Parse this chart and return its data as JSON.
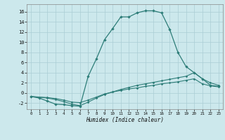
{
  "xlabel": "Humidex (Indice chaleur)",
  "bg_color": "#cce8ec",
  "grid_color": "#aacdd4",
  "line_color": "#2d7d78",
  "xlim": [
    -0.5,
    23.5
  ],
  "ylim": [
    -3.2,
    17.5
  ],
  "xticks": [
    0,
    1,
    2,
    3,
    4,
    5,
    6,
    7,
    8,
    9,
    10,
    11,
    12,
    13,
    14,
    15,
    16,
    17,
    18,
    19,
    20,
    21,
    22,
    23
  ],
  "yticks": [
    -2,
    0,
    2,
    4,
    6,
    8,
    10,
    12,
    14,
    16
  ],
  "line1_x": [
    0,
    1,
    2,
    3,
    4,
    5,
    6,
    7,
    8,
    9,
    10,
    11,
    12,
    13,
    14,
    15,
    16,
    17,
    18,
    19,
    20,
    21,
    22,
    23
  ],
  "line1_y": [
    -0.7,
    -1.0,
    -1.6,
    -2.2,
    -2.3,
    -2.5,
    -2.6,
    3.3,
    6.7,
    10.5,
    12.7,
    15.0,
    15.0,
    15.8,
    16.2,
    16.2,
    15.8,
    12.5,
    8.0,
    5.2,
    4.0,
    2.8,
    1.5,
    1.3
  ],
  "line2_x": [
    0,
    2,
    3,
    4,
    5,
    6,
    7,
    8,
    9,
    10,
    11,
    12,
    13,
    14,
    15,
    16,
    17,
    18,
    19,
    20,
    21,
    22,
    23
  ],
  "line2_y": [
    -0.7,
    -1.0,
    -1.3,
    -1.7,
    -2.2,
    -2.5,
    -1.8,
    -1.0,
    -0.3,
    0.2,
    0.7,
    1.1,
    1.5,
    1.8,
    2.1,
    2.4,
    2.7,
    3.0,
    3.3,
    4.0,
    2.8,
    2.0,
    1.5
  ],
  "line3_x": [
    0,
    2,
    3,
    4,
    5,
    6,
    7,
    8,
    9,
    10,
    11,
    12,
    13,
    14,
    15,
    16,
    17,
    18,
    19,
    20,
    21,
    22,
    23
  ],
  "line3_y": [
    -0.7,
    -0.9,
    -1.1,
    -1.4,
    -1.8,
    -1.9,
    -1.4,
    -0.8,
    -0.2,
    0.2,
    0.5,
    0.8,
    1.0,
    1.3,
    1.5,
    1.8,
    2.0,
    2.2,
    2.5,
    2.8,
    1.8,
    1.4,
    1.2
  ]
}
